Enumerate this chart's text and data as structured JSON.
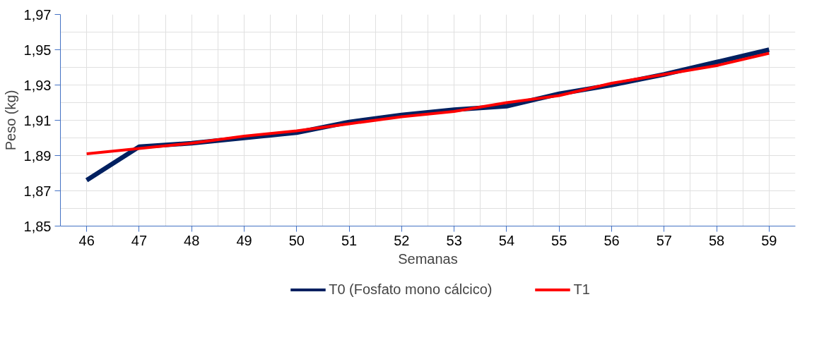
{
  "chart_data": {
    "type": "line",
    "xlabel": "Semanas",
    "ylabel": "Peso (kg)",
    "categories": [
      "46",
      "47",
      "48",
      "49",
      "50",
      "51",
      "52",
      "53",
      "54",
      "55",
      "56",
      "57",
      "58",
      "59"
    ],
    "series": [
      {
        "name": "T0 (Fosfato mono cálcico)",
        "color": "#002060",
        "values": [
          1.876,
          1.895,
          1.897,
          1.9,
          1.903,
          1.909,
          1.913,
          1.916,
          1.918,
          1.925,
          1.93,
          1.936,
          1.943,
          1.95
        ]
      },
      {
        "name": "T1",
        "color": "#ff0000",
        "values": [
          1.891,
          1.894,
          1.897,
          1.901,
          1.904,
          1.908,
          1.912,
          1.915,
          1.92,
          1.924,
          1.931,
          1.936,
          1.941,
          1.948
        ]
      }
    ],
    "ylim": [
      1.85,
      1.97
    ],
    "yticks": [
      {
        "value": 1.85,
        "label": "1,85"
      },
      {
        "value": 1.87,
        "label": "1,87"
      },
      {
        "value": 1.89,
        "label": "1,89"
      },
      {
        "value": 1.91,
        "label": "1,91"
      },
      {
        "value": 1.93,
        "label": "1,93"
      },
      {
        "value": 1.95,
        "label": "1,95"
      },
      {
        "value": 1.97,
        "label": "1,97"
      }
    ],
    "grid": true,
    "legend": "bottom",
    "marker": "none",
    "line_style": "solid"
  }
}
